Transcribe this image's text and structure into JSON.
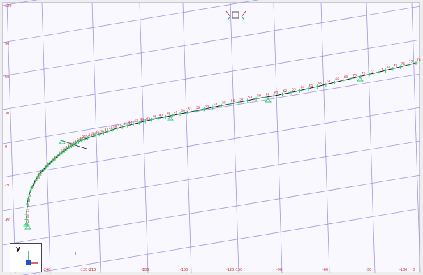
{
  "viewport": {
    "y_ticks": [
      "120",
      "90",
      "60",
      "30",
      "0",
      "-30",
      "-60"
    ],
    "x_ticks": [
      "-240",
      "-120",
      "-210",
      "-180",
      "-150",
      "-120",
      "-150",
      "-90",
      "-60",
      "-30",
      "-180",
      "0"
    ],
    "axis_label_y": "y",
    "grid_color": "#9a98e0",
    "curve_color": "#1a1a1a",
    "marker_color": "#2ecc71",
    "label_color": "#cc1a1a",
    "node_labels": [
      "1",
      "2",
      "3",
      "4",
      "5",
      "6",
      "7",
      "8",
      "9",
      "10",
      "11",
      "12",
      "13",
      "14",
      "15",
      "16",
      "17",
      "18",
      "19",
      "20",
      "21",
      "22",
      "23",
      "24",
      "25",
      "26",
      "27",
      "28",
      "29",
      "30",
      "31",
      "32",
      "33",
      "34",
      "35",
      "36",
      "37",
      "38",
      "39",
      "40",
      "41",
      "42",
      "43",
      "44",
      "45",
      "46",
      "47",
      "48",
      "49",
      "50",
      "51",
      "52",
      "53",
      "54",
      "55",
      "56",
      "57",
      "58",
      "59",
      "60",
      "61",
      "62",
      "63",
      "64",
      "65",
      "66",
      "67",
      "68",
      "69",
      "70",
      "71",
      "72",
      "73",
      "74",
      "75",
      "76",
      "77",
      "78"
    ]
  },
  "view_cube": {
    "icon": "view-cube-icon"
  },
  "axis_triad": {
    "icon": "axis-triad-icon"
  }
}
